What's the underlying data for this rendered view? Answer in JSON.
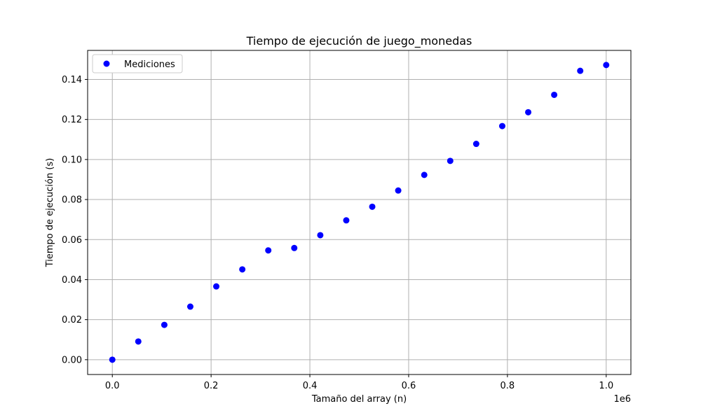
{
  "chart_data": {
    "type": "scatter",
    "title": "Tiempo de ejecución de juego_monedas",
    "xlabel": "Tamaño del array (n)",
    "ylabel": "Tiempo de ejecución (s)",
    "x_offset_label": "1e6",
    "xlim": [
      -0.05,
      1.05
    ],
    "ylim": [
      -0.0074,
      0.1545
    ],
    "x_ticks": [
      0.0,
      0.2,
      0.4,
      0.6,
      0.8,
      1.0
    ],
    "x_tick_labels": [
      "0.0",
      "0.2",
      "0.4",
      "0.6",
      "0.8",
      "1.0"
    ],
    "y_ticks": [
      0.0,
      0.02,
      0.04,
      0.06,
      0.08,
      0.1,
      0.12,
      0.14
    ],
    "y_tick_labels": [
      "0.00",
      "0.02",
      "0.04",
      "0.06",
      "0.08",
      "0.10",
      "0.12",
      "0.14"
    ],
    "grid": true,
    "legend_position": "top-left",
    "series": [
      {
        "name": "Mediciones",
        "color": "#0000ff",
        "marker": "circle",
        "x": [
          0.0,
          0.0526,
          0.1053,
          0.1579,
          0.2105,
          0.2632,
          0.3158,
          0.3684,
          0.4211,
          0.4737,
          0.5263,
          0.5789,
          0.6316,
          0.6842,
          0.7368,
          0.7895,
          0.8421,
          0.8947,
          0.9474,
          1.0
        ],
        "y": [
          0.0,
          0.0091,
          0.0174,
          0.0265,
          0.0366,
          0.0451,
          0.0546,
          0.0558,
          0.0622,
          0.0696,
          0.0764,
          0.0845,
          0.0923,
          0.0993,
          0.1078,
          0.1167,
          0.1236,
          0.1323,
          0.1443,
          0.1472
        ]
      }
    ]
  }
}
